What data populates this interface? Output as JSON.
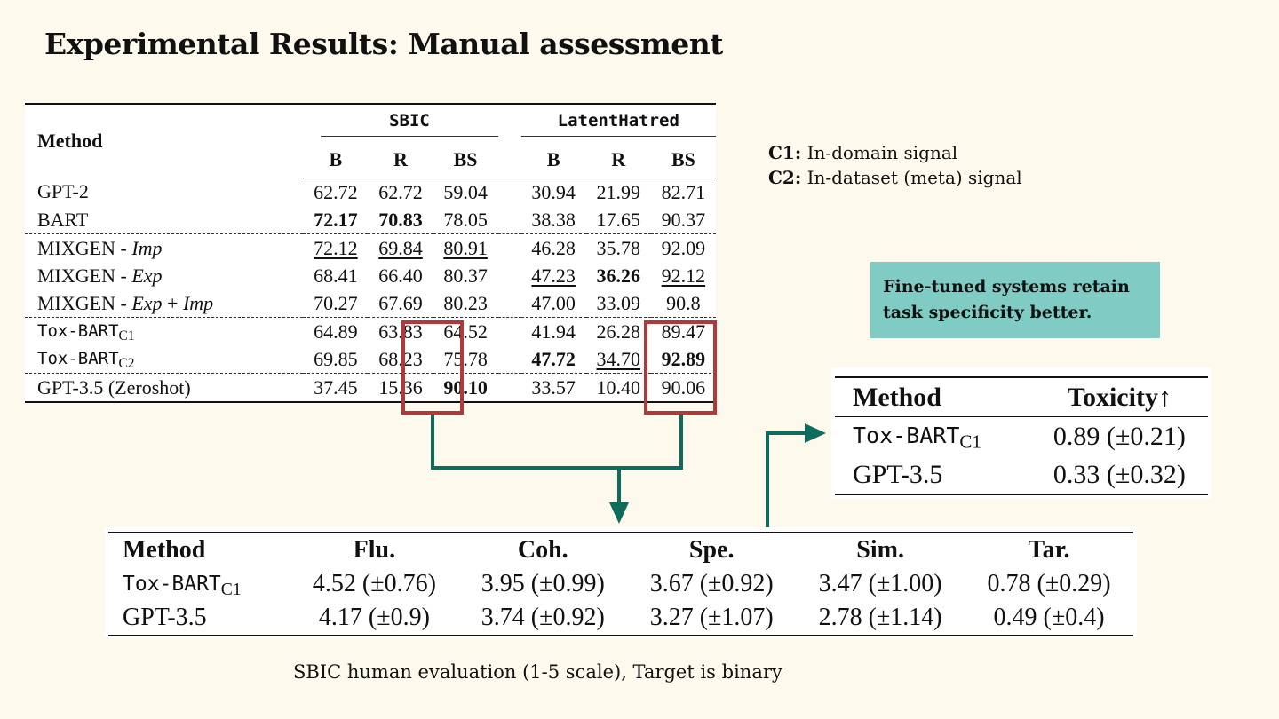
{
  "title": "Experimental Results: Manual assessment",
  "main_table": {
    "method_header": "Method",
    "group_headers": [
      "SBIC",
      "LatentHatred"
    ],
    "sub_headers": [
      "B",
      "R",
      "BS",
      "B",
      "R",
      "BS"
    ],
    "rows": [
      {
        "method": "GPT-2",
        "values": [
          "62.72",
          "62.72",
          "59.04",
          "30.94",
          "21.99",
          "82.71"
        ]
      },
      {
        "method": "BART",
        "values": [
          "72.17",
          "70.83",
          "78.05",
          "38.38",
          "17.65",
          "90.37"
        ]
      },
      {
        "method_prefix": "MIXGEN - ",
        "method_italic": "Imp",
        "values": [
          "72.12",
          "69.84",
          "80.91",
          "46.28",
          "35.78",
          "92.09"
        ]
      },
      {
        "method_prefix": "MIXGEN - ",
        "method_italic": "Exp",
        "values": [
          "68.41",
          "66.40",
          "80.37",
          "47.23",
          "36.26",
          "92.12"
        ]
      },
      {
        "method_prefix": "MIXGEN - ",
        "method_italic": "Exp",
        "method_mid": " + ",
        "method_italic2": "Imp",
        "values": [
          "70.27",
          "67.69",
          "80.23",
          "47.00",
          "33.09",
          "90.8"
        ]
      },
      {
        "method_base": "Tox-BART",
        "method_sub": "C1",
        "values": [
          "64.89",
          "63.83",
          "64.52",
          "41.94",
          "26.28",
          "89.47"
        ]
      },
      {
        "method_base": "Tox-BART",
        "method_sub": "C2",
        "values": [
          "69.85",
          "68.23",
          "75.78",
          "47.72",
          "34.70",
          "92.89"
        ]
      },
      {
        "method": "GPT-3.5 (Zeroshot)",
        "values": [
          "37.45",
          "15.36",
          "90.10",
          "33.57",
          "10.40",
          "90.06"
        ]
      }
    ]
  },
  "notes": [
    {
      "key": "C1:",
      "text": "In-domain signal"
    },
    {
      "key": "C2:",
      "text": "In-dataset (meta) signal"
    }
  ],
  "callout": "Fine-tuned systems retain task specificity better.",
  "tox_table": {
    "headers": [
      "Method",
      "Toxicity↑"
    ],
    "rows": [
      {
        "method_base": "Tox-BART",
        "method_sub": "C1",
        "value": "0.89 (±0.21)"
      },
      {
        "method": "GPT-3.5",
        "value": "0.33 (±0.32)"
      }
    ]
  },
  "human_table": {
    "headers": [
      "Method",
      "Flu.",
      "Coh.",
      "Spe.",
      "Sim.",
      "Tar."
    ],
    "rows": [
      {
        "method_base": "Tox-BART",
        "method_sub": "C1",
        "values": [
          "4.52 (±0.76)",
          "3.95 (±0.99)",
          "3.67 (±0.92)",
          "3.47 (±1.00)",
          "0.78 (±0.29)"
        ]
      },
      {
        "method": "GPT-3.5",
        "values": [
          "4.17 (±0.9)",
          "3.74 (±0.92)",
          "3.27 (±1.07)",
          "2.78 (±1.14)",
          "0.49 (±0.4)"
        ]
      }
    ]
  },
  "caption": "SBIC human evaluation (1-5 scale), Target is binary",
  "colors": {
    "background": "#fdf9ec",
    "highlight": "#b03a3a",
    "arrow": "#0f6b5c",
    "callout": "#80cbc4"
  }
}
